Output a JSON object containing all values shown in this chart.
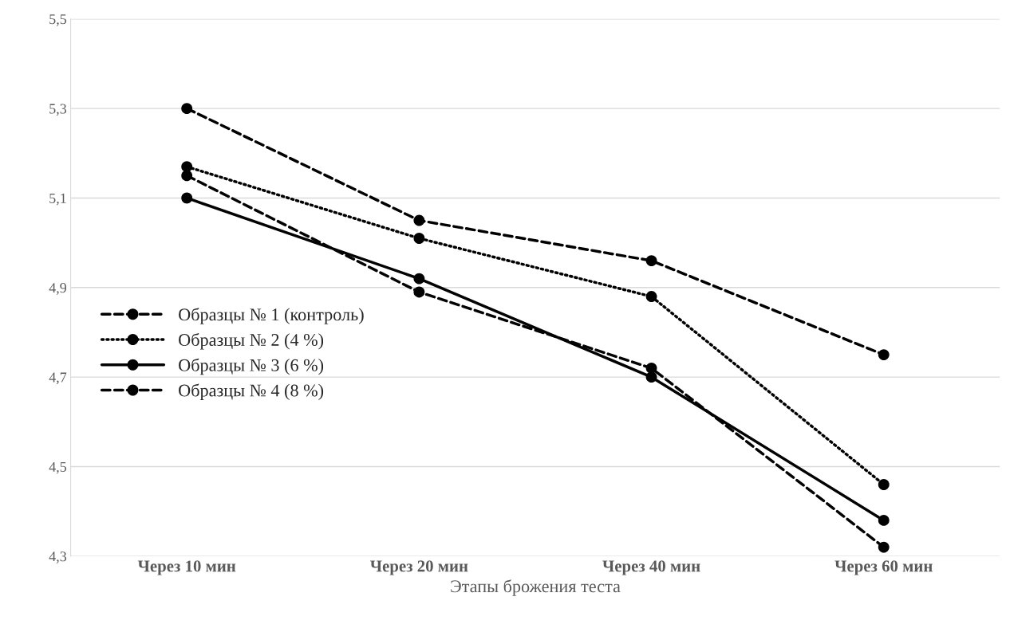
{
  "chart_data": {
    "type": "line",
    "xlabel": "Этапы брожения теста",
    "categories": [
      "Через 10 мин",
      "Через 20 мин",
      "Через 40 мин",
      "Через 60 мин"
    ],
    "series": [
      {
        "name": "Образцы № 1 (контроль)",
        "color": "#000000",
        "line_style": "dashed",
        "values": [
          5.3,
          5.05,
          4.96,
          4.75
        ]
      },
      {
        "name": "Образцы № 2 (4 %)",
        "color": "#010101",
        "line_style": "dotted",
        "values": [
          5.17,
          5.01,
          4.88,
          4.46
        ]
      },
      {
        "name": "Образцы № 3 (6 %)",
        "color": "#020202",
        "line_style": "solid",
        "values": [
          5.1,
          4.92,
          4.7,
          4.38
        ]
      },
      {
        "name": "Образцы № 4 (8 %)",
        "color": "#030303",
        "line_style": "dashed",
        "values": [
          5.15,
          4.89,
          4.72,
          4.32
        ]
      }
    ],
    "ylim": [
      4.3,
      5.5
    ],
    "yticks": [
      {
        "value": 4.3,
        "label": "4,3"
      },
      {
        "value": 4.5,
        "label": "4,5"
      },
      {
        "value": 4.7,
        "label": "4,7"
      },
      {
        "value": 4.9,
        "label": "4,9"
      },
      {
        "value": 5.1,
        "label": "5,1"
      },
      {
        "value": 5.3,
        "label": "5,3"
      },
      {
        "value": 5.5,
        "label": "5,5"
      }
    ],
    "grid": "y",
    "legend": "left",
    "marker": "circle"
  }
}
